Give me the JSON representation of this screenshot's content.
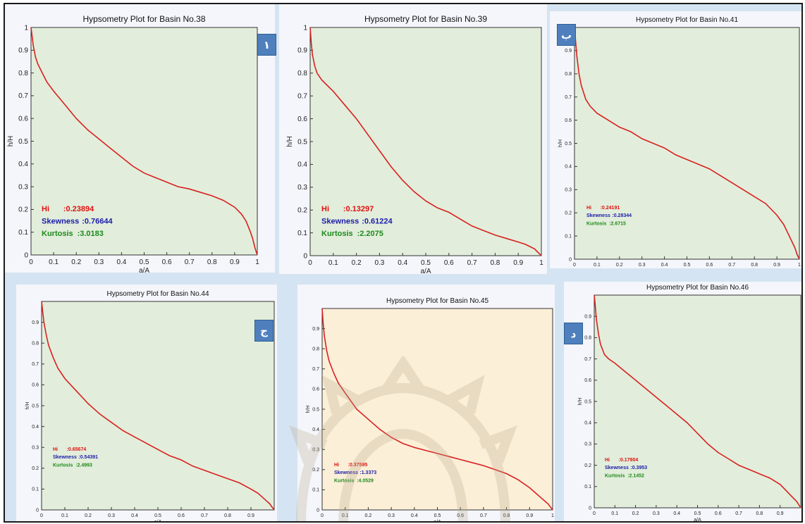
{
  "colors": {
    "curve": "#d92020",
    "hi": "#e01010",
    "skewness": "#1c1ca8",
    "kurtosis": "#1d8a1d",
    "plot_bg_green": "#e2eedb",
    "plot_bg_cream": "#fbefd8",
    "badge": "#4f80bd",
    "page_bg": "#d5e4f2"
  },
  "chart_data": [
    {
      "type": "line",
      "title": "Hypsometry Plot for Basin No.38",
      "xlabel": "a/A",
      "ylabel": "h/H",
      "xlim": [
        0,
        1
      ],
      "ylim": [
        0,
        1
      ],
      "xticks": [
        "0",
        "0.1",
        "0.2",
        "0.3",
        "0.4",
        "0.5",
        "0.6",
        "0.7",
        "0.8",
        "0.9",
        "1"
      ],
      "yticks": [
        "0",
        "0.1",
        "0.2",
        "0.3",
        "0.4",
        "0.5",
        "0.6",
        "0.7",
        "0.8",
        "0.9",
        "1"
      ],
      "x": [
        0,
        0.005,
        0.01,
        0.02,
        0.03,
        0.05,
        0.07,
        0.1,
        0.15,
        0.2,
        0.25,
        0.3,
        0.35,
        0.4,
        0.45,
        0.5,
        0.55,
        0.6,
        0.65,
        0.7,
        0.75,
        0.8,
        0.85,
        0.9,
        0.93,
        0.95,
        0.97,
        0.98,
        0.99,
        1
      ],
      "y": [
        1,
        0.96,
        0.92,
        0.87,
        0.84,
        0.8,
        0.76,
        0.72,
        0.66,
        0.6,
        0.55,
        0.51,
        0.47,
        0.43,
        0.39,
        0.36,
        0.34,
        0.32,
        0.3,
        0.29,
        0.275,
        0.26,
        0.24,
        0.21,
        0.18,
        0.15,
        0.1,
        0.07,
        0.03,
        0
      ],
      "stats": [
        {
          "label": "Hi",
          "value": ":0.23894",
          "kind": "hi"
        },
        {
          "label": "Skewness",
          "value": ":0.76644",
          "kind": "skewness"
        },
        {
          "label": "Kurtosis",
          "value": ":3.0183",
          "kind": "kurtosis"
        }
      ],
      "badge": "١",
      "background": "green"
    },
    {
      "type": "line",
      "title": "Hypsometry Plot for Basin No.39",
      "xlabel": "a/A",
      "ylabel": "h/H",
      "xlim": [
        0,
        1
      ],
      "ylim": [
        0,
        1
      ],
      "xticks": [
        "0",
        "0.1",
        "0.2",
        "0.3",
        "0.4",
        "0.5",
        "0.6",
        "0.7",
        "0.8",
        "0.9",
        "1"
      ],
      "yticks": [
        "0",
        "0.1",
        "0.2",
        "0.3",
        "0.4",
        "0.5",
        "0.6",
        "0.7",
        "0.8",
        "0.9",
        "1"
      ],
      "x": [
        0,
        0.005,
        0.01,
        0.02,
        0.03,
        0.05,
        0.07,
        0.1,
        0.15,
        0.2,
        0.25,
        0.3,
        0.35,
        0.4,
        0.45,
        0.5,
        0.55,
        0.6,
        0.65,
        0.7,
        0.75,
        0.8,
        0.85,
        0.9,
        0.93,
        0.95,
        0.97,
        0.98,
        0.99,
        1
      ],
      "y": [
        1,
        0.93,
        0.88,
        0.83,
        0.8,
        0.77,
        0.75,
        0.72,
        0.66,
        0.6,
        0.53,
        0.46,
        0.39,
        0.33,
        0.28,
        0.24,
        0.21,
        0.19,
        0.16,
        0.13,
        0.11,
        0.09,
        0.075,
        0.06,
        0.05,
        0.04,
        0.03,
        0.02,
        0.01,
        0
      ],
      "stats": [
        {
          "label": "Hi",
          "value": ":0.13297",
          "kind": "hi"
        },
        {
          "label": "Skewness",
          "value": ":0.61224",
          "kind": "skewness"
        },
        {
          "label": "Kurtosis",
          "value": ":2.2075",
          "kind": "kurtosis"
        }
      ],
      "badge": "",
      "background": "green"
    },
    {
      "type": "line",
      "title": "Hypsometry Plot for Basin No.41",
      "xlabel": "a/A",
      "ylabel": "h/H",
      "xlim": [
        0,
        1
      ],
      "ylim": [
        0,
        1
      ],
      "xticks": [
        "0",
        "0.1",
        "0.2",
        "0.3",
        "0.4",
        "0.5",
        "0.6",
        "0.7",
        "0.8",
        "0.9",
        "1"
      ],
      "yticks": [
        "0",
        "0.1",
        "0.2",
        "0.3",
        "0.4",
        "0.5",
        "0.6",
        "0.7",
        "0.8",
        "0.9",
        "1"
      ],
      "x": [
        0,
        0.005,
        0.01,
        0.02,
        0.03,
        0.05,
        0.07,
        0.1,
        0.15,
        0.2,
        0.25,
        0.3,
        0.35,
        0.4,
        0.45,
        0.5,
        0.55,
        0.6,
        0.65,
        0.7,
        0.75,
        0.8,
        0.85,
        0.9,
        0.93,
        0.95,
        0.97,
        0.98,
        0.99,
        1
      ],
      "y": [
        1,
        0.94,
        0.88,
        0.8,
        0.75,
        0.69,
        0.66,
        0.63,
        0.6,
        0.57,
        0.55,
        0.52,
        0.5,
        0.48,
        0.45,
        0.43,
        0.41,
        0.39,
        0.36,
        0.33,
        0.3,
        0.27,
        0.24,
        0.19,
        0.15,
        0.11,
        0.07,
        0.05,
        0.02,
        0
      ],
      "stats": [
        {
          "label": "Hi",
          "value": ":0.24191",
          "kind": "hi"
        },
        {
          "label": "Skewness",
          "value": ":0.28344",
          "kind": "skewness"
        },
        {
          "label": "Kurtosis",
          "value": ":2.6715",
          "kind": "kurtosis"
        }
      ],
      "badge": "ب",
      "background": "green"
    },
    {
      "type": "line",
      "title": "Hypsometry Plot for Basin No.44",
      "xlabel": "a/A",
      "ylabel": "h/H",
      "xlim": [
        0,
        1
      ],
      "ylim": [
        0,
        1
      ],
      "xticks": [
        "0",
        "0.1",
        "0.2",
        "0.3",
        "0.4",
        "0.5",
        "0.6",
        "0.7",
        "0.8",
        "0.9"
      ],
      "yticks": [
        "0",
        "0.1",
        "0.2",
        "0.3",
        "0.4",
        "0.5",
        "0.6",
        "0.7",
        "0.8",
        "0.9"
      ],
      "x": [
        0,
        0.005,
        0.01,
        0.02,
        0.03,
        0.05,
        0.07,
        0.1,
        0.15,
        0.2,
        0.25,
        0.3,
        0.35,
        0.4,
        0.45,
        0.5,
        0.55,
        0.6,
        0.65,
        0.7,
        0.75,
        0.8,
        0.85,
        0.9,
        0.93,
        0.95,
        0.97,
        0.98,
        0.99,
        1
      ],
      "y": [
        1,
        0.95,
        0.9,
        0.84,
        0.79,
        0.73,
        0.68,
        0.63,
        0.57,
        0.51,
        0.46,
        0.42,
        0.38,
        0.35,
        0.32,
        0.29,
        0.26,
        0.24,
        0.21,
        0.19,
        0.17,
        0.15,
        0.13,
        0.1,
        0.08,
        0.06,
        0.04,
        0.03,
        0.015,
        0
      ],
      "stats": [
        {
          "label": "Hi",
          "value": ":0.65674",
          "kind": "hi"
        },
        {
          "label": "Skewness",
          "value": ":0.54391",
          "kind": "skewness"
        },
        {
          "label": "Kurtosis",
          "value": ":2.4993",
          "kind": "kurtosis"
        }
      ],
      "badge": "ج",
      "background": "green"
    },
    {
      "type": "line",
      "title": "Hypsometry Plot for Basin No.45",
      "xlabel": "a/A",
      "ylabel": "h/H",
      "xlim": [
        0,
        1
      ],
      "ylim": [
        0,
        1
      ],
      "xticks": [
        "0",
        "0.1",
        "0.2",
        "0.3",
        "0.4",
        "0.5",
        "0.6",
        "0.7",
        "0.8",
        "0.9",
        "1"
      ],
      "yticks": [
        "0",
        "0.1",
        "0.2",
        "0.3",
        "0.4",
        "0.5",
        "0.6",
        "0.7",
        "0.8",
        "0.9"
      ],
      "x": [
        0,
        0.005,
        0.01,
        0.02,
        0.03,
        0.05,
        0.07,
        0.1,
        0.15,
        0.2,
        0.25,
        0.3,
        0.35,
        0.4,
        0.45,
        0.5,
        0.55,
        0.6,
        0.65,
        0.7,
        0.75,
        0.8,
        0.85,
        0.9,
        0.93,
        0.95,
        0.97,
        0.98,
        0.99,
        1
      ],
      "y": [
        1,
        0.92,
        0.86,
        0.79,
        0.74,
        0.68,
        0.63,
        0.58,
        0.5,
        0.45,
        0.4,
        0.36,
        0.33,
        0.31,
        0.295,
        0.28,
        0.265,
        0.25,
        0.235,
        0.22,
        0.2,
        0.18,
        0.15,
        0.11,
        0.08,
        0.06,
        0.04,
        0.03,
        0.015,
        0
      ],
      "stats": [
        {
          "label": "Hi",
          "value": ":0.37595",
          "kind": "hi"
        },
        {
          "label": "Skewness",
          "value": ":1.3373",
          "kind": "skewness"
        },
        {
          "label": "Kurtosis",
          "value": ":4.0529",
          "kind": "kurtosis"
        }
      ],
      "badge": "",
      "background": "cream"
    },
    {
      "type": "line",
      "title": "Hypsometry Plot for Basin No.46",
      "xlabel": "a/A",
      "ylabel": "h/H",
      "xlim": [
        0,
        1
      ],
      "ylim": [
        0,
        1
      ],
      "xticks": [
        "0",
        "0.1",
        "0.2",
        "0.3",
        "0.4",
        "0.5",
        "0.6",
        "0.7",
        "0.8",
        "0.9"
      ],
      "yticks": [
        "0",
        "0.1",
        "0.2",
        "0.3",
        "0.4",
        "0.5",
        "0.6",
        "0.7",
        "0.8",
        "0.9"
      ],
      "x": [
        0,
        0.005,
        0.01,
        0.02,
        0.03,
        0.05,
        0.07,
        0.1,
        0.15,
        0.2,
        0.25,
        0.3,
        0.35,
        0.4,
        0.45,
        0.5,
        0.55,
        0.6,
        0.65,
        0.7,
        0.75,
        0.8,
        0.85,
        0.9,
        0.93,
        0.95,
        0.97,
        0.98,
        0.99,
        1
      ],
      "y": [
        1,
        0.95,
        0.89,
        0.82,
        0.77,
        0.72,
        0.7,
        0.68,
        0.64,
        0.6,
        0.56,
        0.52,
        0.48,
        0.44,
        0.4,
        0.35,
        0.3,
        0.26,
        0.23,
        0.2,
        0.18,
        0.16,
        0.14,
        0.11,
        0.08,
        0.06,
        0.04,
        0.03,
        0.015,
        0
      ],
      "stats": [
        {
          "label": "Hi",
          "value": ":0.17904",
          "kind": "hi"
        },
        {
          "label": "Skewness",
          "value": ":0.3953",
          "kind": "skewness"
        },
        {
          "label": "Kurtosis",
          "value": ":2.1452",
          "kind": "kurtosis"
        }
      ],
      "badge": "د",
      "background": "green"
    }
  ]
}
